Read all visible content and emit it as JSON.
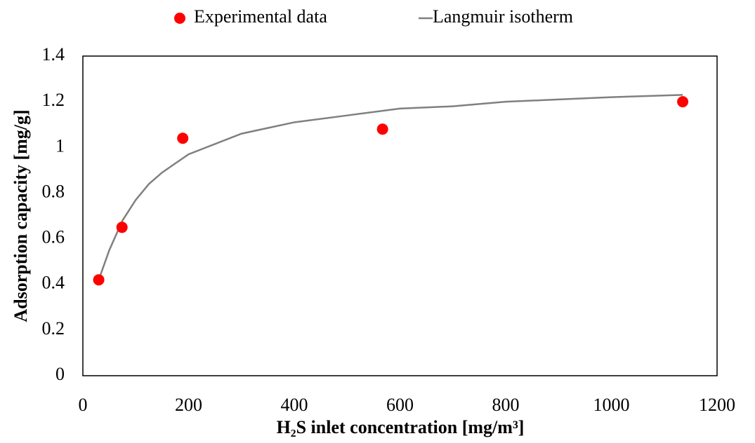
{
  "chart_data": {
    "type": "scatter",
    "xlabel": "H₂S inlet concentration [mg/m³]",
    "ylabel": "Adsorption capacity [mg/g]",
    "xlim": [
      0,
      1200
    ],
    "xticks": [
      0,
      200,
      400,
      600,
      800,
      1000,
      1200
    ],
    "ylim": [
      0,
      1.4
    ],
    "yticks": [
      0,
      0.2,
      0.4,
      0.6,
      0.8,
      1,
      1.2,
      1.4
    ],
    "grid": false,
    "legend": "top",
    "series": [
      {
        "name": "Experimental data",
        "type": "scatter",
        "color": "#ff0000",
        "x": [
          30,
          74,
          189,
          567,
          1135
        ],
        "values": [
          0.42,
          0.65,
          1.04,
          1.08,
          1.2
        ]
      },
      {
        "name": "Langmuir isotherm",
        "type": "line",
        "color": "#808080",
        "x": [
          30,
          50,
          75,
          100,
          125,
          150,
          200,
          300,
          400,
          500,
          600,
          700,
          800,
          900,
          1000,
          1135
        ],
        "values": [
          0.42,
          0.55,
          0.68,
          0.77,
          0.84,
          0.89,
          0.97,
          1.06,
          1.11,
          1.14,
          1.17,
          1.18,
          1.2,
          1.21,
          1.22,
          1.23
        ]
      }
    ]
  }
}
